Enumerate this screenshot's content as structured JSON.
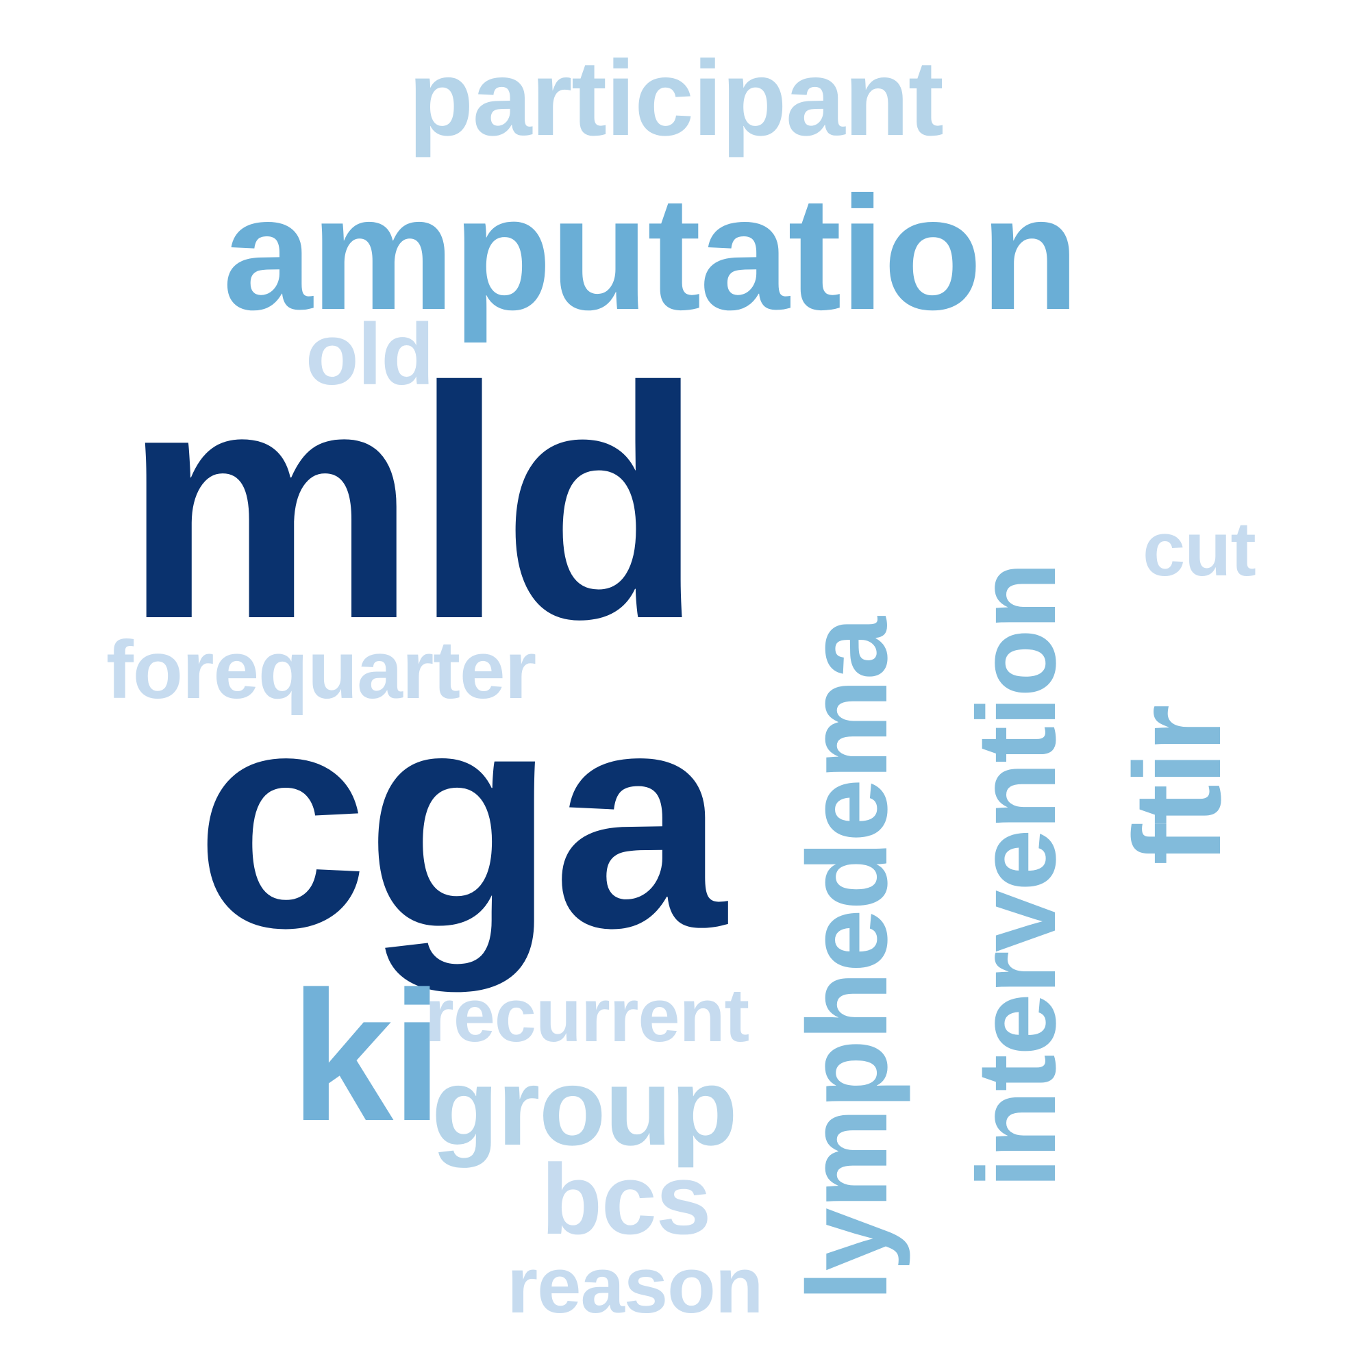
{
  "word_cloud": {
    "background": "#ffffff",
    "words": [
      {
        "id": "mld",
        "text": "mld",
        "color": "#0a326e",
        "orientation": "horizontal"
      },
      {
        "id": "cga",
        "text": "cga",
        "color": "#0a326e",
        "orientation": "horizontal"
      },
      {
        "id": "amputation",
        "text": "amputation",
        "color": "#6aaed6",
        "orientation": "horizontal"
      },
      {
        "id": "lymphedema",
        "text": "lymphedema",
        "color": "#82bbdb",
        "orientation": "vertical"
      },
      {
        "id": "intervention",
        "text": "intervention",
        "color": "#82bbdb",
        "orientation": "vertical"
      },
      {
        "id": "ftir",
        "text": "ftir",
        "color": "#82bbdb",
        "orientation": "vertical"
      },
      {
        "id": "ki",
        "text": "ki",
        "color": "#72b1d8",
        "orientation": "horizontal"
      },
      {
        "id": "participant",
        "text": "participant",
        "color": "#b5d4e9",
        "orientation": "horizontal"
      },
      {
        "id": "group",
        "text": "group",
        "color": "#b5d4e9",
        "orientation": "horizontal"
      },
      {
        "id": "old",
        "text": "old",
        "color": "#c6dbef",
        "orientation": "horizontal"
      },
      {
        "id": "forequarter",
        "text": "forequarter",
        "color": "#c6dbef",
        "orientation": "horizontal"
      },
      {
        "id": "recurrent",
        "text": "recurrent",
        "color": "#c6dbef",
        "orientation": "horizontal"
      },
      {
        "id": "cut",
        "text": "cut",
        "color": "#c6dbef",
        "orientation": "horizontal"
      },
      {
        "id": "bcs",
        "text": "bcs",
        "color": "#c6dbef",
        "orientation": "horizontal"
      },
      {
        "id": "reason",
        "text": "reason",
        "color": "#c6dbef",
        "orientation": "horizontal"
      }
    ]
  }
}
